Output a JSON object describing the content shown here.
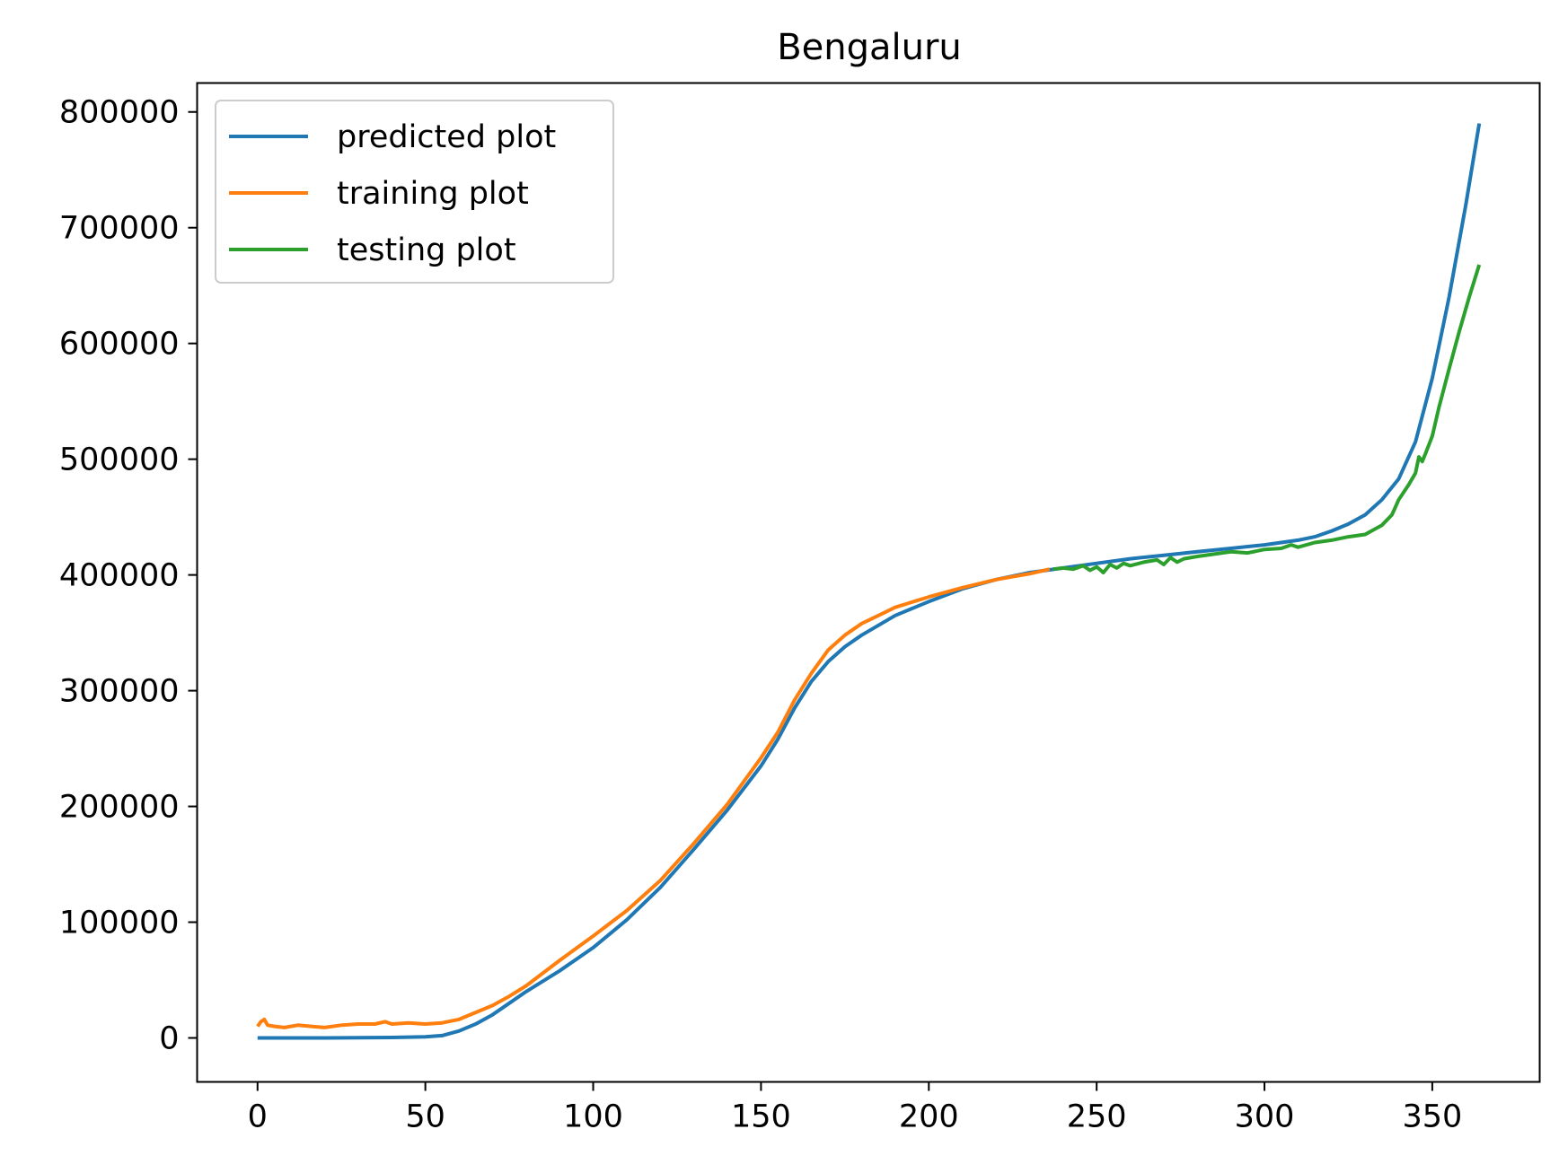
{
  "chart_data": {
    "type": "line",
    "title": "Bengaluru",
    "xlabel": "",
    "ylabel": "",
    "xlim": [
      -18,
      382
    ],
    "ylim": [
      -38000,
      825000
    ],
    "x_ticks": [
      0,
      50,
      100,
      150,
      200,
      250,
      300,
      350
    ],
    "y_ticks": [
      0,
      100000,
      200000,
      300000,
      400000,
      500000,
      600000,
      700000,
      800000
    ],
    "grid": false,
    "legend_position": "upper-left",
    "series": [
      {
        "name": "predicted plot",
        "color": "#1f77b4",
        "x": [
          0,
          10,
          20,
          30,
          40,
          50,
          55,
          60,
          65,
          70,
          75,
          80,
          90,
          100,
          110,
          120,
          130,
          140,
          150,
          155,
          160,
          165,
          170,
          175,
          180,
          190,
          200,
          210,
          220,
          230,
          240,
          250,
          260,
          270,
          280,
          290,
          300,
          310,
          315,
          320,
          325,
          330,
          335,
          340,
          345,
          350,
          355,
          360,
          364
        ],
        "y": [
          0,
          0,
          0,
          200,
          400,
          1000,
          2000,
          6000,
          12000,
          20000,
          30000,
          40000,
          58000,
          78000,
          102000,
          130000,
          163000,
          197000,
          235000,
          258000,
          285000,
          308000,
          325000,
          338000,
          348000,
          365000,
          377000,
          388000,
          396000,
          402000,
          406000,
          410000,
          414000,
          417000,
          420000,
          423000,
          426000,
          430000,
          433000,
          438000,
          444000,
          452000,
          465000,
          483000,
          515000,
          570000,
          640000,
          720000,
          790000
        ]
      },
      {
        "name": "training plot",
        "color": "#ff7f0e",
        "x": [
          0,
          1,
          2,
          3,
          5,
          8,
          12,
          16,
          20,
          25,
          30,
          35,
          38,
          40,
          45,
          50,
          55,
          60,
          65,
          70,
          75,
          80,
          90,
          100,
          110,
          120,
          130,
          140,
          150,
          155,
          160,
          165,
          170,
          175,
          180,
          185,
          190,
          200,
          210,
          220,
          230,
          236
        ],
        "y": [
          10000,
          14000,
          16000,
          11000,
          10000,
          9000,
          11000,
          10000,
          9000,
          11000,
          12000,
          12000,
          14000,
          12000,
          13000,
          12000,
          13000,
          16000,
          22000,
          28000,
          36000,
          45000,
          67000,
          88000,
          110000,
          136000,
          168000,
          202000,
          242000,
          264000,
          292000,
          315000,
          335000,
          348000,
          358000,
          365000,
          372000,
          381000,
          389000,
          396000,
          401000,
          405000
        ]
      },
      {
        "name": "testing plot",
        "color": "#2ca02c",
        "x": [
          237,
          240,
          243,
          246,
          248,
          250,
          252,
          254,
          256,
          258,
          260,
          264,
          268,
          270,
          272,
          274,
          276,
          280,
          285,
          290,
          295,
          300,
          305,
          308,
          310,
          315,
          320,
          325,
          330,
          335,
          338,
          340,
          343,
          345,
          346,
          347,
          348,
          350,
          352,
          355,
          358,
          361,
          364
        ],
        "y": [
          405000,
          406000,
          405000,
          408000,
          404000,
          407000,
          402000,
          409000,
          406000,
          410000,
          408000,
          411000,
          413000,
          409000,
          415000,
          411000,
          414000,
          416000,
          418000,
          420000,
          419000,
          422000,
          423000,
          426000,
          424000,
          428000,
          430000,
          433000,
          435000,
          443000,
          452000,
          465000,
          478000,
          488000,
          502000,
          498000,
          505000,
          520000,
          545000,
          578000,
          610000,
          640000,
          668000
        ]
      }
    ]
  }
}
